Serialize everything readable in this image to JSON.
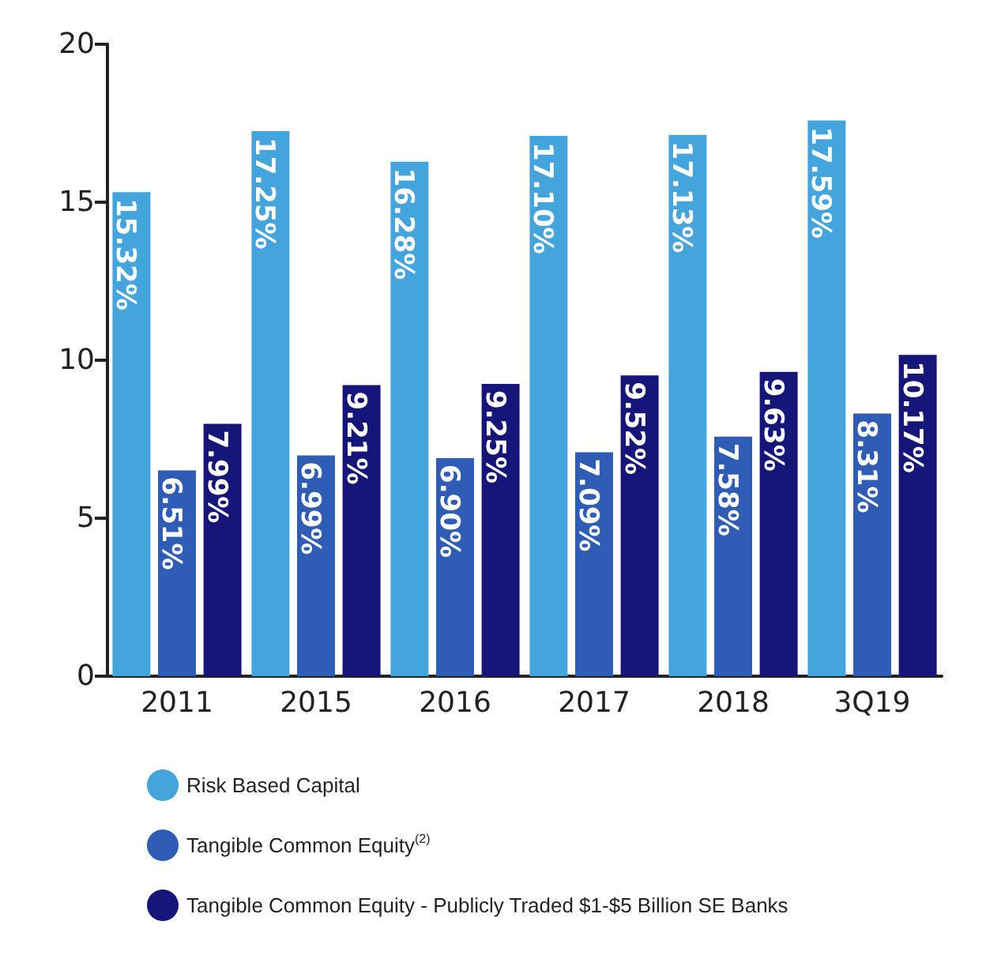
{
  "chart_data": {
    "type": "bar",
    "categories": [
      "2011",
      "2015",
      "2016",
      "2017",
      "2018",
      "3Q19"
    ],
    "series": [
      {
        "name": "Risk Based Capital",
        "color": "#44a5dc",
        "values": [
          15.32,
          17.25,
          16.28,
          17.1,
          17.13,
          17.59
        ],
        "value_labels": [
          "15.32%",
          "17.25%",
          "16.28%",
          "17.10%",
          "17.13%",
          "17.59%"
        ]
      },
      {
        "name": "Tangible Common Equity$^{(2)}$",
        "color": "#2f5db5",
        "values": [
          6.51,
          6.99,
          6.9,
          7.09,
          7.58,
          8.31
        ],
        "value_labels": [
          "6.51%",
          "6.99%",
          "6.90%",
          "7.09%",
          "7.58%",
          "8.31%"
        ]
      },
      {
        "name": "Tangible Common Equity - Publicly Traded $1-$5 Billion SE Banks",
        "color": "#16157a",
        "values": [
          7.99,
          9.21,
          9.25,
          9.52,
          9.63,
          10.17
        ],
        "value_labels": [
          "7.99%",
          "9.21%",
          "9.25%",
          "9.52%",
          "9.63%",
          "10.17%"
        ]
      }
    ],
    "ylim": [
      0,
      20
    ],
    "yticks": [
      0,
      5,
      10,
      15,
      20
    ],
    "grid": false,
    "legend": "bottom"
  }
}
